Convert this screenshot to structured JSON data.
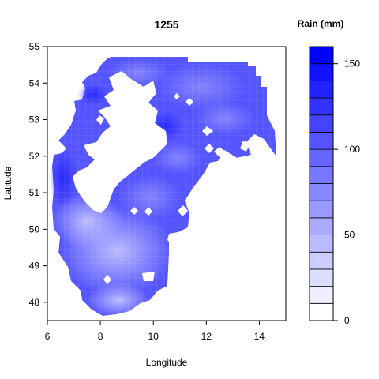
{
  "chart_data": {
    "type": "heatmap",
    "title": "1255",
    "xlabel": "Longitude",
    "ylabel": "Latitude",
    "xlim": [
      6,
      15
    ],
    "ylim": [
      47.5,
      55
    ],
    "x_ticks": [
      "6",
      "8",
      "10",
      "12",
      "14"
    ],
    "y_ticks": [
      "48",
      "49",
      "50",
      "51",
      "52",
      "53",
      "54",
      "55"
    ],
    "grid": false,
    "legend": {
      "title": "Rain (mm)",
      "placement": "right",
      "range": [
        0,
        160
      ],
      "ticks": [
        "0",
        "50",
        "100",
        "150"
      ],
      "levels": [
        0,
        10,
        20,
        30,
        40,
        50,
        60,
        70,
        80,
        90,
        100,
        110,
        120,
        130,
        140,
        150,
        160
      ],
      "colors": [
        "#ffffff",
        "#eeeeff",
        "#ddddff",
        "#ccccff",
        "#bbbbff",
        "#aaaaff",
        "#9999ff",
        "#8888ff",
        "#7777ff",
        "#6666ff",
        "#5555ff",
        "#4444ff",
        "#3333ff",
        "#2222ff",
        "#1111ff",
        "#0000ff"
      ]
    },
    "field": [
      {
        "lon": 7.0,
        "lat": 52.0,
        "rain": 150
      },
      {
        "lon": 7.5,
        "lat": 50.5,
        "rain": 70
      },
      {
        "lon": 8.5,
        "lat": 49.7,
        "rain": 45
      },
      {
        "lon": 8.7,
        "lat": 48.5,
        "rain": 60
      },
      {
        "lon": 9.5,
        "lat": 50.5,
        "rain": 85
      },
      {
        "lon": 9.0,
        "lat": 54.5,
        "rain": 110
      },
      {
        "lon": 11.5,
        "lat": 51.8,
        "rain": 110
      },
      {
        "lon": 12.5,
        "lat": 53.8,
        "rain": 95
      },
      {
        "lon": 12.0,
        "lat": 53.2,
        "rain": 120
      },
      {
        "lon": 13.5,
        "lat": 52.2,
        "rain": 100
      }
    ]
  }
}
